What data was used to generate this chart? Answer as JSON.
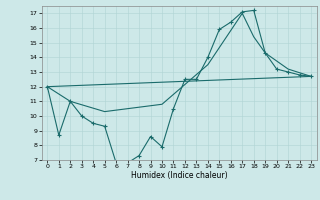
{
  "xlabel": "Humidex (Indice chaleur)",
  "background_color": "#cde8e8",
  "line_color": "#1a6b6b",
  "ylim": [
    7,
    17.5
  ],
  "xlim": [
    -0.5,
    23.5
  ],
  "yticks": [
    7,
    8,
    9,
    10,
    11,
    12,
    13,
    14,
    15,
    16,
    17
  ],
  "xticks": [
    0,
    1,
    2,
    3,
    4,
    5,
    6,
    7,
    8,
    9,
    10,
    11,
    12,
    13,
    14,
    15,
    16,
    17,
    18,
    19,
    20,
    21,
    22,
    23
  ],
  "lines": [
    {
      "x": [
        0,
        1,
        2,
        3,
        4,
        5,
        6,
        7,
        8,
        9,
        10,
        11,
        12,
        13,
        14,
        15,
        16,
        17,
        18,
        19,
        20,
        21,
        22,
        23
      ],
      "y": [
        12,
        8.7,
        11,
        10,
        9.5,
        9.3,
        6.8,
        6.8,
        7.3,
        8.6,
        7.9,
        10.5,
        12.5,
        12.5,
        14,
        15.9,
        16.4,
        17.1,
        17.2,
        14.3,
        13.2,
        13.0,
        12.8,
        12.7
      ],
      "marker": true
    },
    {
      "x": [
        0,
        23
      ],
      "y": [
        12,
        12.7
      ],
      "marker": false
    },
    {
      "x": [
        0,
        2,
        5,
        10,
        14,
        17,
        18,
        19,
        21,
        23
      ],
      "y": [
        12,
        11,
        10.3,
        10.8,
        13.5,
        17.0,
        15.4,
        14.3,
        13.2,
        12.7
      ],
      "marker": false
    }
  ]
}
